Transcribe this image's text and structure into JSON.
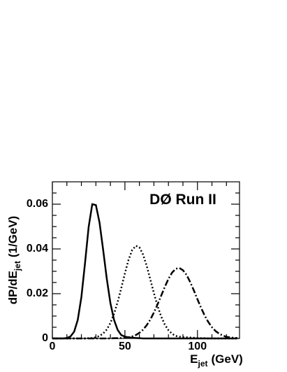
{
  "chart_data": {
    "type": "line",
    "annotation": "DØ Run II",
    "xlabel": {
      "main": "E",
      "sub": "jet",
      "unit": "(GeV)"
    },
    "ylabel": {
      "main": "dP/dE",
      "sub": "jet",
      "unit": "(1/GeV)"
    },
    "xlim": [
      0,
      129
    ],
    "ylim": [
      0,
      0.07
    ],
    "xticks": [
      0,
      50,
      100
    ],
    "yticks": [
      {
        "value": 0,
        "label": "0"
      },
      0.02,
      0.04,
      0.06
    ],
    "xminorticks": [
      10,
      20,
      30,
      40,
      60,
      70,
      80,
      90,
      110,
      120
    ],
    "yminorticks": [
      0.005,
      0.01,
      0.015,
      0.025,
      0.03,
      0.035,
      0.045,
      0.05,
      0.055,
      0.065
    ],
    "x": [
      0,
      2.5,
      5,
      7.5,
      10,
      12.5,
      15,
      17.5,
      20,
      22.5,
      25,
      27.5,
      30,
      32.5,
      35,
      37.5,
      40,
      42.5,
      45,
      47.5,
      50,
      52.5,
      55,
      57.5,
      60,
      62.5,
      65,
      67.5,
      70,
      72.5,
      75,
      77.5,
      80,
      82.5,
      85,
      87.5,
      90,
      92.5,
      95,
      97.5,
      100,
      102.5,
      105,
      107.5,
      110,
      112.5,
      115,
      117.5,
      120,
      122.5,
      125,
      127.5
    ],
    "series": [
      {
        "style": "solid",
        "color": "#000000",
        "values": [
          0,
          0,
          0,
          0,
          0.0002,
          0.0009,
          0.003,
          0.0083,
          0.0185,
          0.0336,
          0.0498,
          0.06,
          0.0596,
          0.0518,
          0.0396,
          0.0267,
          0.0158,
          0.0083,
          0.0038,
          0.0015,
          0.0008,
          0.0005,
          0.0003,
          0.0002,
          0.0001,
          0,
          0,
          0,
          0,
          0,
          0,
          0,
          0,
          0,
          0,
          0,
          0,
          0,
          0,
          0,
          0,
          0,
          0,
          0,
          0,
          0,
          0,
          0,
          0,
          0,
          0,
          0
        ]
      },
      {
        "style": "dotted",
        "color": "#000000",
        "values": [
          0,
          0,
          0,
          0,
          0,
          0,
          0,
          0,
          0,
          0,
          0.0001,
          0.0002,
          0.0005,
          0.0011,
          0.0022,
          0.004,
          0.0069,
          0.011,
          0.0163,
          0.0225,
          0.0291,
          0.0351,
          0.0395,
          0.0414,
          0.0407,
          0.0375,
          0.0325,
          0.0264,
          0.0202,
          0.0145,
          0.0098,
          0.0062,
          0.0037,
          0.0021,
          0.0011,
          0.0008,
          0.0006,
          0.0005,
          0.0004,
          0.0003,
          0.0002,
          0.0001,
          0.0001,
          0,
          0,
          0,
          0,
          0,
          0,
          0,
          0,
          0
        ]
      },
      {
        "style": "dashdot",
        "color": "#000000",
        "values": [
          0,
          0,
          0,
          0,
          0,
          0,
          0,
          0,
          0,
          0,
          0,
          0,
          0,
          0,
          0,
          0,
          0,
          0.0001,
          0.0001,
          0.0002,
          0.0003,
          0.0005,
          0.0009,
          0.0015,
          0.0025,
          0.0039,
          0.0059,
          0.0084,
          0.0116,
          0.0152,
          0.0191,
          0.023,
          0.0266,
          0.0294,
          0.0311,
          0.0315,
          0.0305,
          0.0284,
          0.0252,
          0.0215,
          0.0175,
          0.0137,
          0.0102,
          0.0073,
          0.005,
          0.0033,
          0.0021,
          0.0013,
          0.0007,
          0.0005,
          0.0003,
          0.0002
        ]
      }
    ]
  }
}
